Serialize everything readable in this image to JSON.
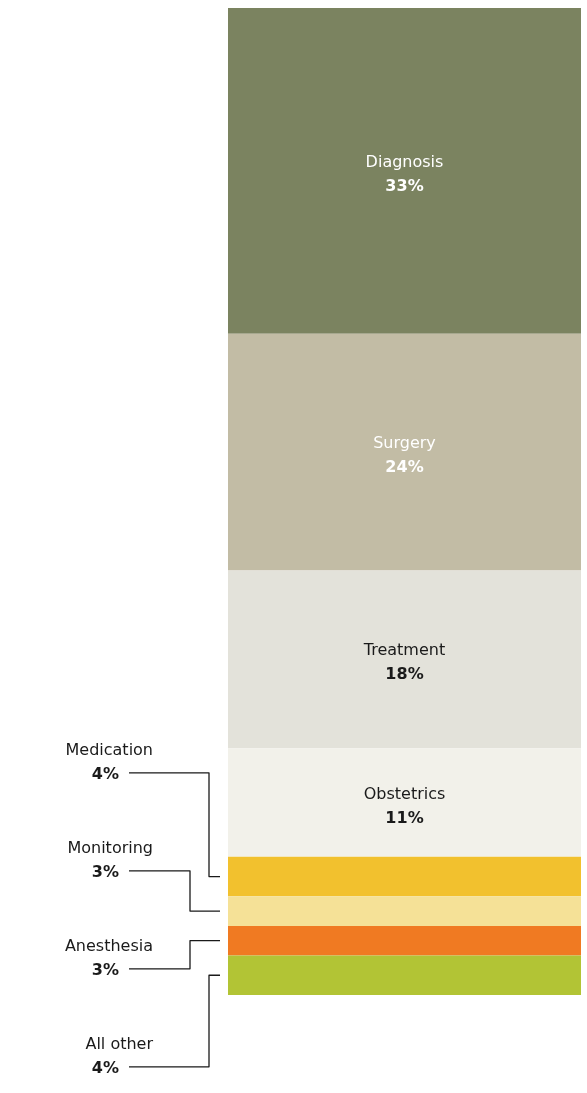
{
  "chart_data": {
    "type": "bar",
    "stacked": true,
    "categories": [
      null
    ],
    "series": [
      {
        "name": "All other",
        "color": "#b2c435",
        "values": [
          4
        ],
        "value_labels": [
          "4%"
        ]
      },
      {
        "name": "Anesthesia",
        "color": "#f07a22",
        "values": [
          3
        ],
        "value_labels": [
          "3%"
        ]
      },
      {
        "name": "Monitoring",
        "color": "#f5e197",
        "values": [
          3
        ],
        "value_labels": [
          "3%"
        ]
      },
      {
        "name": "Medication",
        "color": "#f2c12e",
        "values": [
          4
        ],
        "value_labels": [
          "4%"
        ]
      },
      {
        "name": "Obstetrics",
        "color": "#f2f1ea",
        "values": [
          11
        ],
        "value_labels": [
          "11%"
        ]
      },
      {
        "name": "Treatment",
        "color": "#e3e2da",
        "values": [
          18
        ],
        "value_labels": [
          "18%"
        ]
      },
      {
        "name": "Surgery",
        "color": "#c2bca5",
        "values": [
          24
        ],
        "value_labels": [
          "24%"
        ]
      },
      {
        "name": "Diagnosis",
        "color": "#7b8360",
        "values": [
          33
        ],
        "value_labels": [
          "33%"
        ]
      }
    ]
  }
}
